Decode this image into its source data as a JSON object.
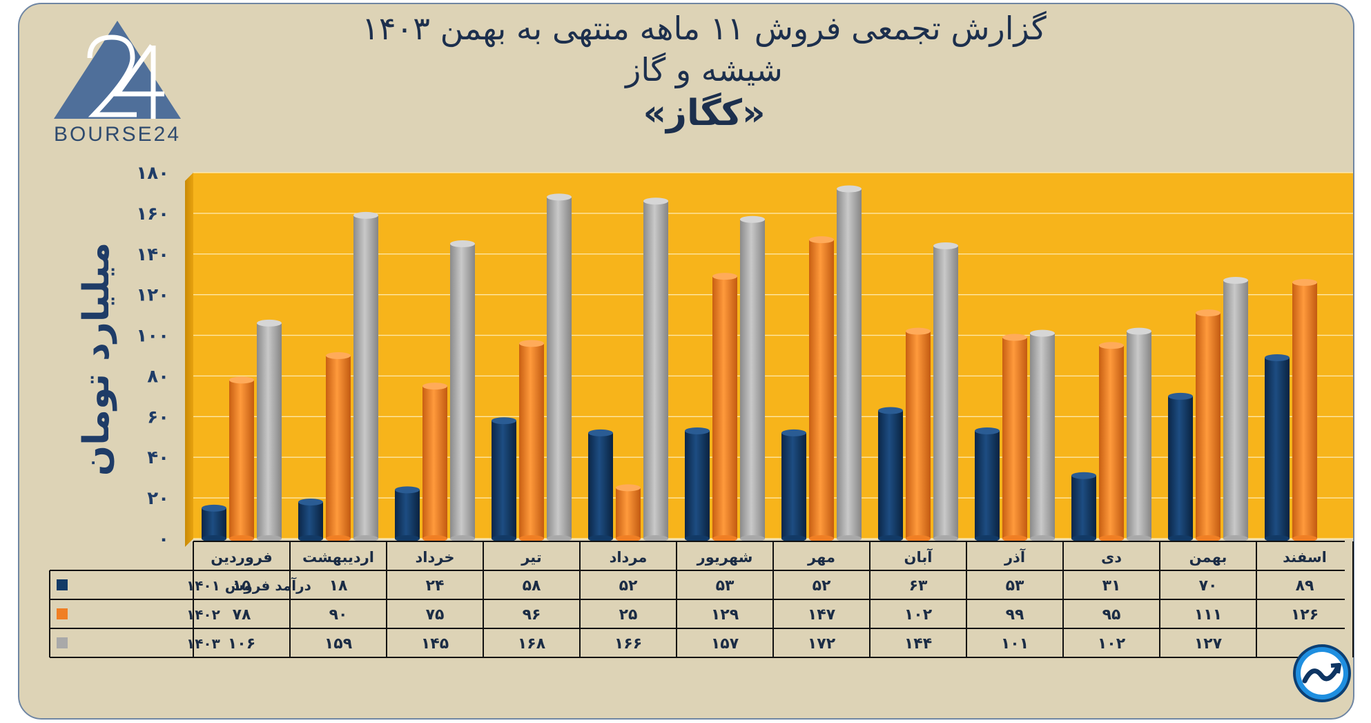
{
  "title": {
    "line1": "گزارش تجمعی فروش ۱۱ ماهه منتهی به بهمن ۱۴۰۳",
    "line2": "شیشه و گاز",
    "line3": "«کگاز»"
  },
  "logo": {
    "text": "BOURSE24",
    "icon": "bourse24-logo-icon"
  },
  "corner_icon": "trend-up-circle-icon",
  "colors": {
    "background": "#ddd3b6",
    "plot_background": "#f7b41b",
    "series_1401": "#123a66",
    "series_1402": "#f07f24",
    "series_1403": "#a9a9a9",
    "title": "#1c2f4d"
  },
  "chart_data": {
    "type": "bar",
    "ylabel": "میلیارد تومان",
    "ylim": [
      0,
      180
    ],
    "yticks": [
      "۰",
      "۲۰",
      "۴۰",
      "۶۰",
      "۸۰",
      "۱۰۰",
      "۱۲۰",
      "۱۴۰",
      "۱۶۰",
      "۱۸۰"
    ],
    "categories": [
      "فروردین",
      "اردیبهشت",
      "خرداد",
      "تیر",
      "مرداد",
      "شهریور",
      "مهر",
      "آبان",
      "آذر",
      "دی",
      "بهمن",
      "اسفند"
    ],
    "series": [
      {
        "name": "درآمد فروش ۱۴۰۱",
        "values": [
          15,
          18,
          24,
          58,
          52,
          53,
          52,
          63,
          53,
          31,
          70,
          89
        ],
        "labels": [
          "۱۵",
          "۱۸",
          "۲۴",
          "۵۸",
          "۵۲",
          "۵۳",
          "۵۲",
          "۶۳",
          "۵۳",
          "۳۱",
          "۷۰",
          "۸۹"
        ]
      },
      {
        "name": "۱۴۰۲",
        "values": [
          78,
          90,
          75,
          96,
          25,
          129,
          147,
          102,
          99,
          95,
          111,
          126
        ],
        "labels": [
          "۷۸",
          "۹۰",
          "۷۵",
          "۹۶",
          "۲۵",
          "۱۲۹",
          "۱۴۷",
          "۱۰۲",
          "۹۹",
          "۹۵",
          "۱۱۱",
          "۱۲۶"
        ]
      },
      {
        "name": "۱۴۰۳",
        "values": [
          106,
          159,
          145,
          168,
          166,
          157,
          172,
          144,
          101,
          102,
          127,
          null
        ],
        "labels": [
          "۱۰۶",
          "۱۵۹",
          "۱۴۵",
          "۱۶۸",
          "۱۶۶",
          "۱۵۷",
          "۱۷۲",
          "۱۴۴",
          "۱۰۱",
          "۱۰۲",
          "۱۲۷",
          ""
        ]
      }
    ],
    "grid": true,
    "legend": "data-table-left"
  }
}
